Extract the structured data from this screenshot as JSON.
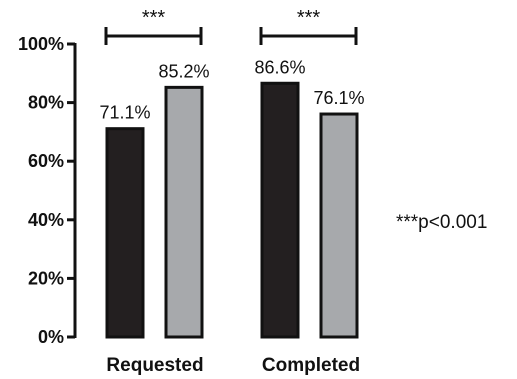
{
  "chart_data": {
    "type": "bar",
    "categories": [
      "Requested",
      "Completed"
    ],
    "series": [
      {
        "values": [
          71.1,
          86.6
        ],
        "color": "#231f20"
      },
      {
        "values": [
          85.2,
          76.1
        ],
        "color": "#a7a9ac"
      }
    ],
    "data_labels": [
      [
        "71.1%",
        "86.6%"
      ],
      [
        "85.2%",
        "76.1%"
      ]
    ],
    "y_ticks": [
      0,
      20,
      40,
      60,
      80,
      100
    ],
    "y_tick_labels": [
      "0%",
      "20%",
      "40%",
      "60%",
      "80%",
      "100%"
    ],
    "ylim": [
      0,
      100
    ],
    "grid": false,
    "significance": [
      {
        "category": "Requested",
        "label": "***"
      },
      {
        "category": "Completed",
        "label": "***"
      }
    ],
    "annotation": "***p<0.001"
  }
}
